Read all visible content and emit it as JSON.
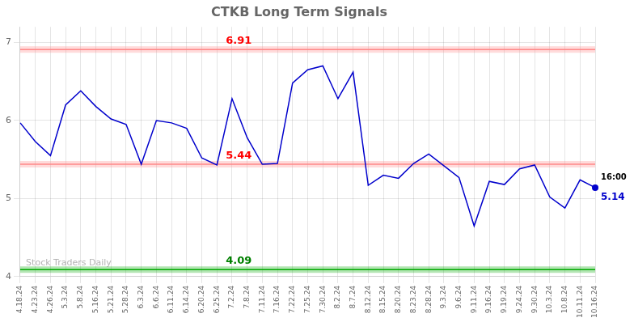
{
  "chart_data": {
    "type": "line",
    "title": "CTKB Long Term Signals",
    "categories": [
      "4.18.24",
      "4.23.24",
      "4.26.24",
      "5.3.24",
      "5.8.24",
      "5.16.24",
      "5.21.24",
      "5.28.24",
      "6.3.24",
      "6.6.24",
      "6.11.24",
      "6.14.24",
      "6.20.24",
      "6.25.24",
      "7.2.24",
      "7.8.24",
      "7.11.24",
      "7.16.24",
      "7.22.24",
      "7.25.24",
      "7.30.24",
      "8.2.24",
      "8.7.24",
      "8.12.24",
      "8.15.24",
      "8.20.24",
      "8.23.24",
      "8.28.24",
      "9.3.24",
      "9.6.24",
      "9.11.24",
      "9.16.24",
      "9.19.24",
      "9.24.24",
      "9.30.24",
      "10.3.24",
      "10.8.24",
      "10.11.24",
      "10.16.24"
    ],
    "values": [
      5.97,
      5.73,
      5.55,
      6.2,
      6.38,
      6.18,
      6.02,
      5.95,
      5.44,
      6.0,
      5.97,
      5.9,
      5.52,
      5.43,
      6.28,
      5.78,
      5.44,
      5.45,
      6.48,
      6.65,
      6.7,
      6.28,
      6.62,
      5.17,
      5.3,
      5.26,
      5.45,
      5.57,
      5.42,
      5.27,
      4.65,
      5.22,
      5.18,
      5.38,
      5.43,
      5.02,
      4.88,
      5.24,
      5.14
    ],
    "color": "#0000cc",
    "hlines": [
      {
        "value": 6.91,
        "label": "6.91",
        "color": "#ff8888",
        "label_color": "red"
      },
      {
        "value": 5.44,
        "label": "5.44",
        "color": "#ff8888",
        "label_color": "red"
      },
      {
        "value": 4.09,
        "label": "4.09",
        "color": "#00aa00",
        "label_color": "green"
      }
    ],
    "annotations": [
      {
        "text": "16:00",
        "x": "10.16.24",
        "y": 5.14,
        "color": "black"
      },
      {
        "text": "5.14",
        "x": "10.16.24",
        "y": 5.14,
        "color": "#0000cc",
        "marker": "circle"
      }
    ],
    "watermark": "Stock Traders Daily",
    "ylim": [
      4.0,
      7.2
    ],
    "yticks": [
      4,
      5,
      6,
      7
    ],
    "grid": true
  }
}
